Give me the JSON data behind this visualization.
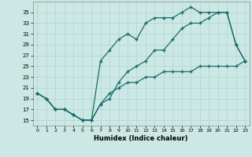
{
  "xlabel": "Humidex (Indice chaleur)",
  "bg_color": "#cce8e4",
  "grid_color": "#b0d4d0",
  "line_color": "#1a6b6b",
  "line1_x": [
    0,
    1,
    2,
    3,
    4,
    5,
    6,
    7,
    8,
    9,
    10,
    11,
    12,
    13,
    14,
    15,
    16,
    17,
    18,
    19,
    20,
    21,
    22,
    23
  ],
  "line1_y": [
    20,
    19,
    17,
    17,
    16,
    15,
    15,
    18,
    19,
    22,
    24,
    25,
    26,
    28,
    28,
    30,
    32,
    33,
    33,
    34,
    35,
    35,
    29,
    26
  ],
  "line2_x": [
    0,
    1,
    2,
    3,
    4,
    5,
    6,
    7,
    8,
    9,
    10,
    11,
    12,
    13,
    14,
    15,
    16,
    17,
    18,
    19,
    20,
    21,
    22,
    23
  ],
  "line2_y": [
    20,
    19,
    17,
    17,
    16,
    15,
    15,
    26,
    28,
    30,
    31,
    30,
    33,
    34,
    34,
    34,
    35,
    36,
    35,
    35,
    35,
    35,
    29,
    26
  ],
  "line3_x": [
    0,
    1,
    2,
    3,
    4,
    5,
    6,
    7,
    8,
    9,
    10,
    11,
    12,
    13,
    14,
    15,
    16,
    17,
    18,
    19,
    20,
    21,
    22,
    23
  ],
  "line3_y": [
    20,
    19,
    17,
    17,
    16,
    15,
    15,
    18,
    20,
    21,
    22,
    22,
    23,
    23,
    24,
    24,
    24,
    24,
    25,
    25,
    25,
    25,
    25,
    26
  ],
  "xlim": [
    -0.5,
    23.5
  ],
  "ylim": [
    14,
    37
  ],
  "yticks": [
    15,
    17,
    19,
    21,
    23,
    25,
    27,
    29,
    31,
    33,
    35
  ],
  "xticks": [
    0,
    1,
    2,
    3,
    4,
    5,
    6,
    7,
    8,
    9,
    10,
    11,
    12,
    13,
    14,
    15,
    16,
    17,
    18,
    19,
    20,
    21,
    22,
    23
  ]
}
